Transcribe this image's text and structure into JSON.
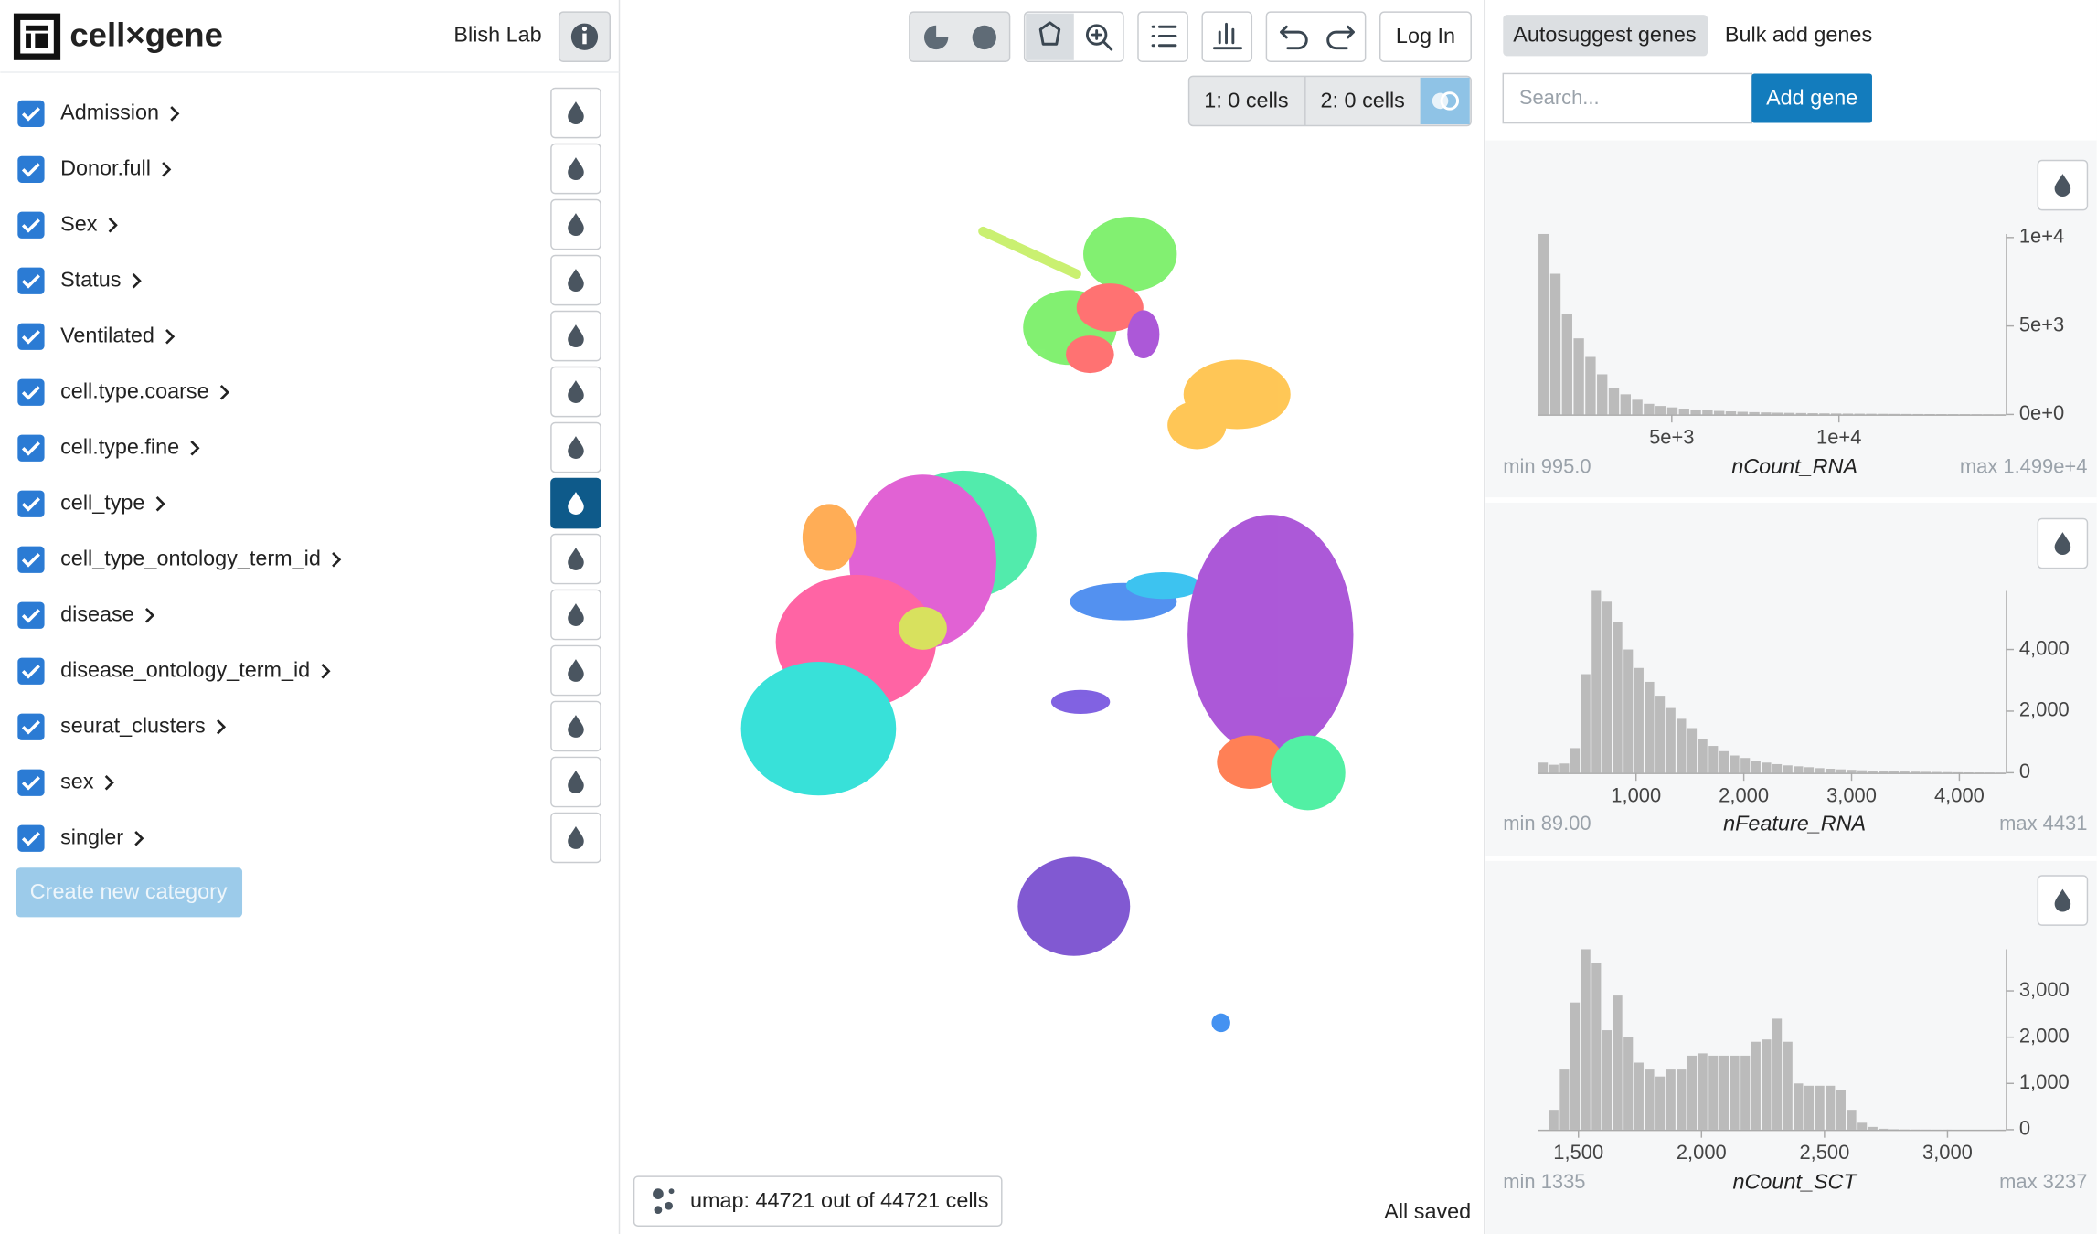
{
  "header": {
    "brand": "cell×gene",
    "lab": "Blish Lab"
  },
  "categories": [
    "Admission",
    "Donor.full",
    "Sex",
    "Status",
    "Ventilated",
    "cell.type.coarse",
    "cell.type.fine",
    "cell_type",
    "cell_type_ontology_term_id",
    "disease",
    "disease_ontology_term_id",
    "seurat_clusters",
    "sex",
    "singler"
  ],
  "active_category": "cell_type",
  "create_button": "Create new category",
  "toolbar": {
    "login": "Log In",
    "set1": "1: 0 cells",
    "set2": "2: 0 cells"
  },
  "embedding": {
    "label": "umap: 44721 out of 44721 cells",
    "status": "All saved"
  },
  "genes": {
    "tabs": [
      "Autosuggest genes",
      "Bulk add genes"
    ],
    "search_placeholder": "Search...",
    "add": "Add gene"
  },
  "charts": [
    {
      "type": "histogram",
      "title": "nCount_RNA",
      "min_label": "min 995.0",
      "max_label": "max 1.499e+4",
      "color": "#bbbbbb",
      "xlim": [
        995,
        14990
      ],
      "xticks": [
        {
          "value": 5000,
          "label": "5e+3"
        },
        {
          "value": 10000,
          "label": "1e+4"
        }
      ],
      "ylim": [
        0,
        10200
      ],
      "yticks": [
        {
          "value": 0,
          "label": "0e+0"
        },
        {
          "value": 5000,
          "label": "5e+3"
        },
        {
          "value": 10000,
          "label": "1e+4"
        }
      ],
      "values": [
        10200,
        7950,
        5700,
        4300,
        3250,
        2270,
        1500,
        1140,
        830,
        600,
        480,
        400,
        330,
        280,
        240,
        200,
        175,
        150,
        130,
        115,
        100,
        90,
        80,
        70,
        62,
        55,
        50,
        45,
        40,
        36,
        32,
        28,
        25,
        22,
        20,
        18,
        16,
        14,
        12,
        10
      ]
    },
    {
      "type": "histogram",
      "title": "nFeature_RNA",
      "min_label": "min 89.00",
      "max_label": "max 4431",
      "color": "#bbbbbb",
      "xlim": [
        89,
        4431
      ],
      "xticks": [
        {
          "value": 1000,
          "label": "1,000"
        },
        {
          "value": 2000,
          "label": "2,000"
        },
        {
          "value": 3000,
          "label": "3,000"
        },
        {
          "value": 4000,
          "label": "4,000"
        }
      ],
      "ylim": [
        0,
        5900
      ],
      "yticks": [
        0,
        {
          "value": 2000,
          "label": "2,000"
        },
        {
          "value": 4000,
          "label": "4,000"
        }
      ],
      "values": [
        330,
        260,
        300,
        800,
        3200,
        5900,
        5550,
        4900,
        4000,
        3400,
        2950,
        2500,
        2100,
        1750,
        1450,
        1100,
        870,
        700,
        560,
        480,
        390,
        330,
        280,
        240,
        210,
        180,
        150,
        130,
        110,
        95,
        80,
        70,
        60,
        50,
        40,
        35,
        30,
        25,
        20,
        15,
        12,
        10,
        8,
        5
      ]
    },
    {
      "type": "histogram",
      "title": "nCount_SCT",
      "min_label": "min 1335",
      "max_label": "max 3237",
      "color": "#bbbbbb",
      "xlim": [
        1335,
        3237
      ],
      "xticks": [
        {
          "value": 1500,
          "label": "1,500"
        },
        {
          "value": 2000,
          "label": "2,000"
        },
        {
          "value": 2500,
          "label": "2,500"
        },
        {
          "value": 3000,
          "label": "3,000"
        }
      ],
      "ylim": [
        0,
        3900
      ],
      "yticks": [
        0,
        {
          "value": 1000,
          "label": "1,000"
        },
        {
          "value": 2000,
          "label": "2,000"
        },
        {
          "value": 3000,
          "label": "3,000"
        }
      ],
      "values": [
        0,
        430,
        1300,
        2750,
        3900,
        3600,
        2150,
        2900,
        2000,
        1450,
        1300,
        1150,
        1300,
        1300,
        1600,
        1650,
        1600,
        1600,
        1600,
        1600,
        1900,
        1950,
        2400,
        1900,
        1000,
        950,
        950,
        950,
        850,
        430,
        150,
        60,
        20,
        10,
        5,
        3,
        2,
        1,
        1,
        0,
        0,
        0,
        0,
        1
      ]
    }
  ]
}
